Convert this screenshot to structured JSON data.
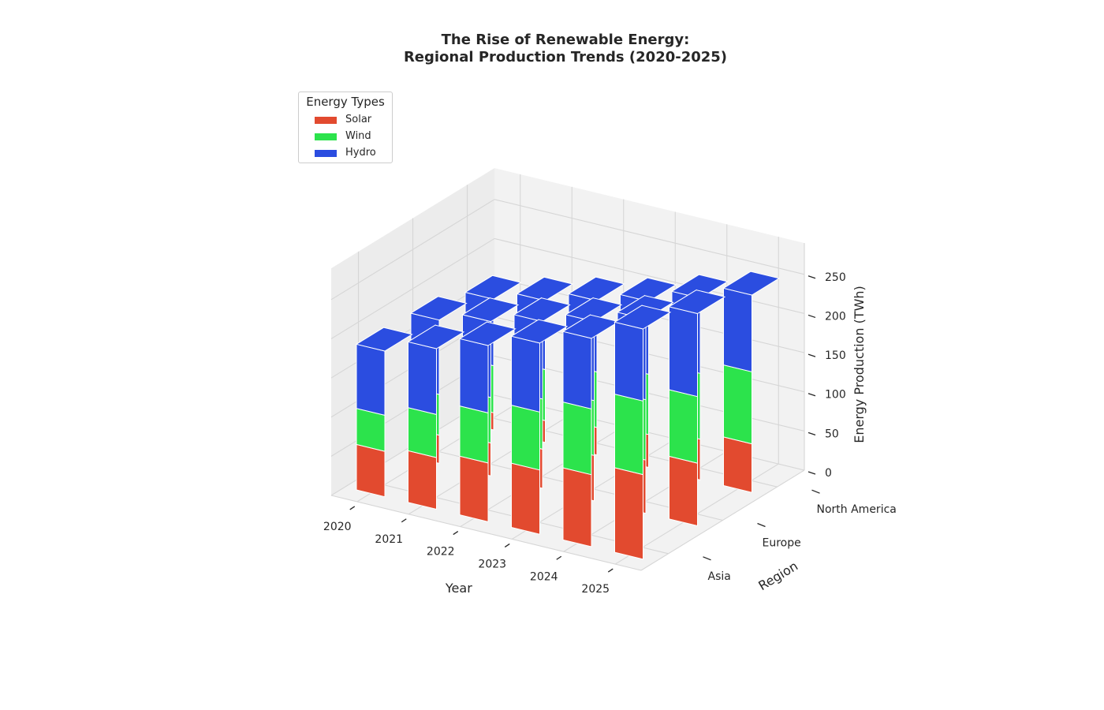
{
  "chart_data": {
    "type": "bar",
    "subtype": "3d-stacked-bar",
    "title": "The Rise of Renewable Energy:\nRegional Production Trends (2020-2025)",
    "title_lines": [
      "The Rise of Renewable Energy:",
      "Regional Production Trends (2020-2025)"
    ],
    "xlabel": "Year",
    "ylabel": "Region",
    "zlabel": "Energy Production (TWh)",
    "years": [
      "2020",
      "2021",
      "2022",
      "2023",
      "2024",
      "2025"
    ],
    "regions": [
      "Asia",
      "Europe",
      "North America"
    ],
    "zticks": [
      "0",
      "50",
      "100",
      "150",
      "200",
      "250"
    ],
    "zlim": [
      0,
      290
    ],
    "legend": {
      "title": "Energy Types",
      "position": "top-left"
    },
    "grid": true,
    "series": [
      {
        "name": "Solar",
        "color": "#e24a2f",
        "values": {
          "Asia": [
            58,
            66,
            75,
            82,
            92,
            108
          ],
          "Europe": [
            36,
            42,
            50,
            58,
            68,
            80
          ],
          "North America": [
            22,
            28,
            35,
            42,
            52,
            62
          ]
        }
      },
      {
        "name": "Wind",
        "color": "#2ce34c",
        "values": {
          "Asia": [
            46,
            55,
            64,
            74,
            84,
            94
          ],
          "Europe": [
            52,
            58,
            64,
            70,
            77,
            85
          ],
          "North America": [
            60,
            65,
            71,
            77,
            84,
            92
          ]
        }
      },
      {
        "name": "Hydro",
        "color": "#2b4de0",
        "values": {
          "Asia": [
            82,
            84,
            86,
            88,
            90,
            92
          ],
          "Europe": [
            95,
            97,
            99,
            101,
            103,
            106
          ],
          "North America": [
            85,
            88,
            91,
            93,
            96,
            98
          ]
        }
      }
    ]
  }
}
